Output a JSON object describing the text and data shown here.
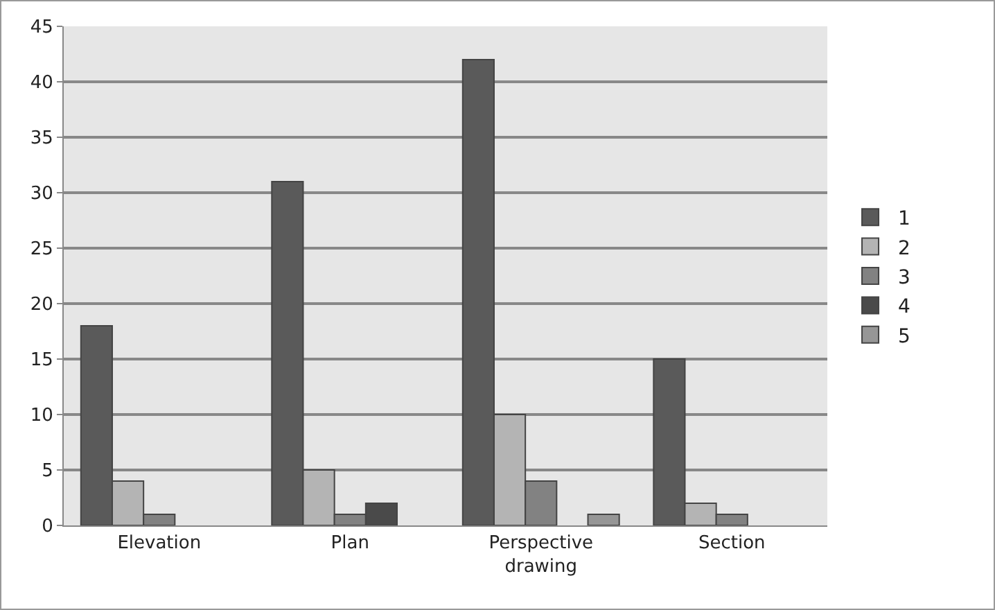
{
  "chart_data": {
    "type": "bar",
    "categories": [
      "Elevation",
      "Plan",
      "Perspective drawing",
      "Section"
    ],
    "series": [
      {
        "name": "1",
        "color": "#5a5a5a",
        "values": [
          18,
          31,
          42,
          15
        ]
      },
      {
        "name": "2",
        "color": "#b4b4b4",
        "values": [
          4,
          5,
          10,
          2
        ]
      },
      {
        "name": "3",
        "color": "#828282",
        "values": [
          1,
          1,
          4,
          1
        ]
      },
      {
        "name": "4",
        "color": "#4a4a4a",
        "values": [
          null,
          2,
          null,
          null
        ]
      },
      {
        "name": "5",
        "color": "#969696",
        "values": [
          null,
          null,
          1,
          null
        ]
      }
    ],
    "ylim": [
      0,
      45
    ],
    "yticks": [
      0,
      5,
      10,
      15,
      20,
      25,
      30,
      35,
      40,
      45
    ],
    "grid": "y",
    "legend": "right"
  }
}
